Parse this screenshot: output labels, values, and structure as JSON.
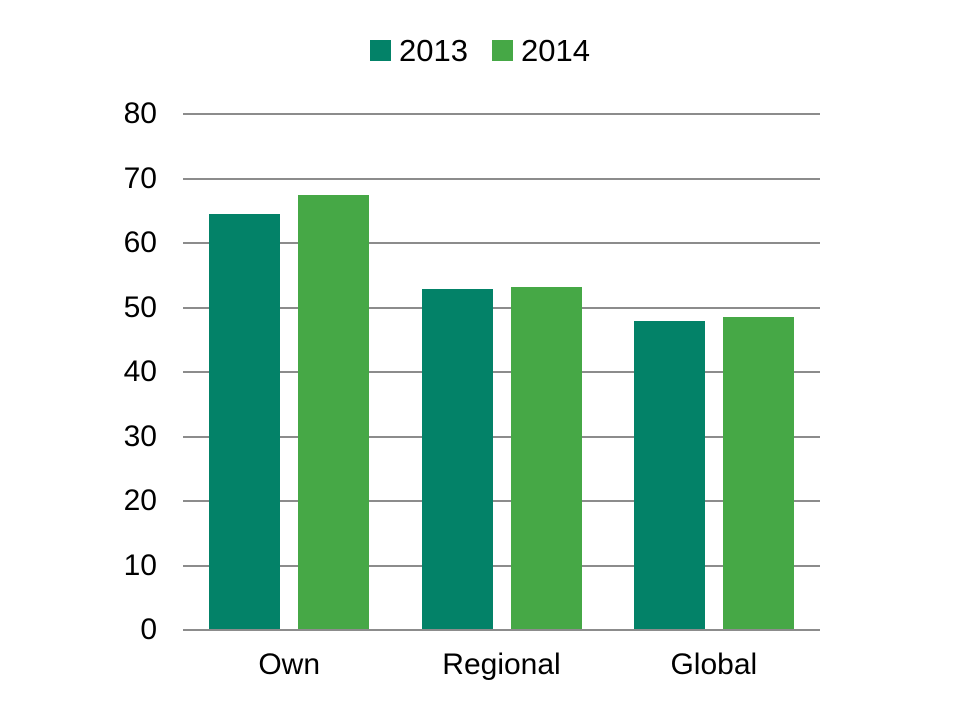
{
  "chart_data": {
    "type": "bar",
    "title": "",
    "xlabel": "",
    "ylabel": "",
    "categories": [
      "Own",
      "Regional",
      "Global"
    ],
    "series": [
      {
        "name": "2013",
        "color": "#038268",
        "values": [
          64.5,
          52.8,
          47.9
        ]
      },
      {
        "name": "2014",
        "color": "#46A846",
        "values": [
          67.5,
          53.2,
          48.6
        ]
      }
    ],
    "ylim": [
      0,
      80
    ],
    "yticks": [
      0,
      10,
      20,
      30,
      40,
      50,
      60,
      70,
      80
    ],
    "grid": "horizontal",
    "gridline_color": "#8C8C8C",
    "axis_line_color": "#8C8C8C",
    "text_color": "#000000",
    "background_color": "#FFFFFF",
    "legend_position": "top-center"
  }
}
